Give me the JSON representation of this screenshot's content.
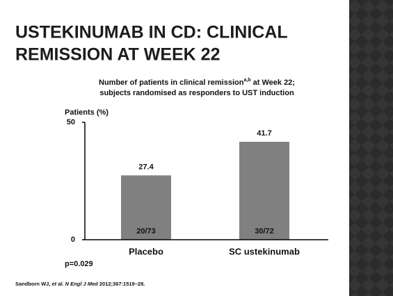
{
  "chart_data": {
    "type": "bar",
    "title": [
      "USTEKINUMAB IN CD: CLINICAL",
      "REMISSION AT WEEK 22"
    ],
    "subtitle": {
      "line1_start": "Number of patients in clinical remission",
      "superscript": "a,b",
      "line1_end": " at Week 22;",
      "line2": "subjects randomised as responders to UST induction"
    },
    "ylabel": "Patients (%)",
    "categories": [
      "Placebo",
      "SC ustekinumab"
    ],
    "values": [
      27.4,
      41.7
    ],
    "bar_labels": [
      "20/73",
      "30/72"
    ],
    "color": "#808080",
    "ylim": [
      0,
      50
    ],
    "yticks": [
      0,
      50
    ],
    "annotation": "p=0.029",
    "footnote": {
      "authors": "Sandborn WJ, ",
      "journal": "et al. N Engl J Med",
      "citation": " 2012;367:1519–28."
    }
  }
}
